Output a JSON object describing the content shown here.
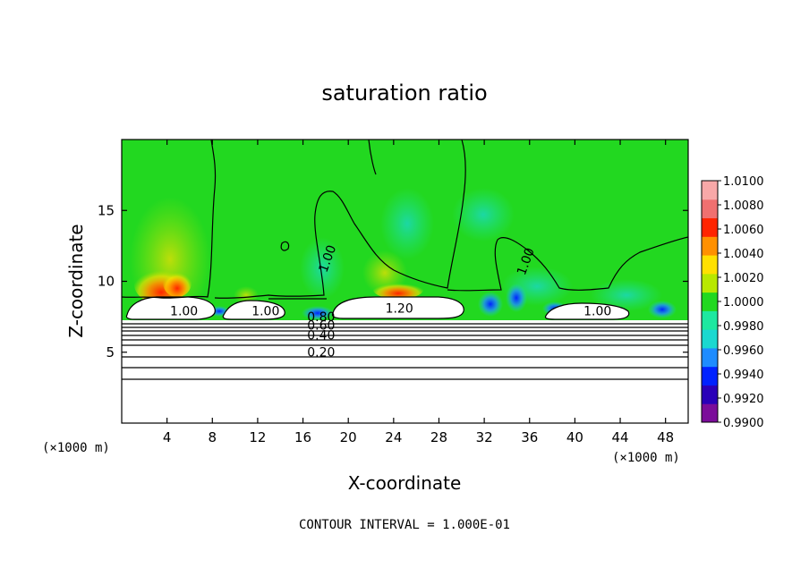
{
  "chart_data": {
    "type": "heatmap",
    "title": "saturation ratio",
    "xlabel": "X-coordinate",
    "ylabel": "Z-coordinate",
    "x_unit": "(×1000 m)",
    "y_unit": "(×1000 m)",
    "xlim": [
      0,
      50
    ],
    "ylim": [
      0,
      20
    ],
    "x_ticks": [
      "4",
      "8",
      "12",
      "16",
      "20",
      "24",
      "28",
      "32",
      "36",
      "40",
      "44",
      "48"
    ],
    "y_ticks": [
      "5",
      "10",
      "15"
    ],
    "colorbar": {
      "min": 0.99,
      "max": 1.01,
      "labels": [
        "1.0100",
        "1.0080",
        "1.0060",
        "1.0040",
        "1.0020",
        "1.0000",
        "0.9980",
        "0.9960",
        "0.9940",
        "0.9920",
        "0.9900"
      ],
      "colors": [
        "#7b0d9a",
        "#2a00b8",
        "#0022ff",
        "#1e8cff",
        "#1ad8d0",
        "#1ee8a0",
        "#22d820",
        "#b8e800",
        "#ffe000",
        "#ff9000",
        "#ff2400",
        "#f07070",
        "#f8a8a8"
      ]
    },
    "contour_labels": [
      {
        "text": "1.00",
        "x": 5.5,
        "y": 7.6
      },
      {
        "text": "1.00",
        "x": 12.7,
        "y": 7.6
      },
      {
        "text": "1.20",
        "x": 24.5,
        "y": 7.8
      },
      {
        "text": "1.00",
        "x": 42.0,
        "y": 7.6
      },
      {
        "text": "1.00",
        "x": 18.5,
        "y": 11.5
      },
      {
        "text": "1.00",
        "x": 36.0,
        "y": 11.3
      },
      {
        "text": "0.80",
        "x": 17.6,
        "y": 7.2
      },
      {
        "text": "0.60",
        "x": 17.6,
        "y": 6.6
      },
      {
        "text": "0.40",
        "x": 17.6,
        "y": 5.9
      },
      {
        "text": "0.20",
        "x": 17.6,
        "y": 4.7
      }
    ],
    "contour_interval_note": "CONTOUR INTERVAL = 1.000E-01",
    "grid": false,
    "legend_position": "right"
  },
  "colors": {
    "background": "#ffffff",
    "field_green": "#22d820",
    "cloud_white": "#ffffff",
    "contour": "#000000"
  }
}
